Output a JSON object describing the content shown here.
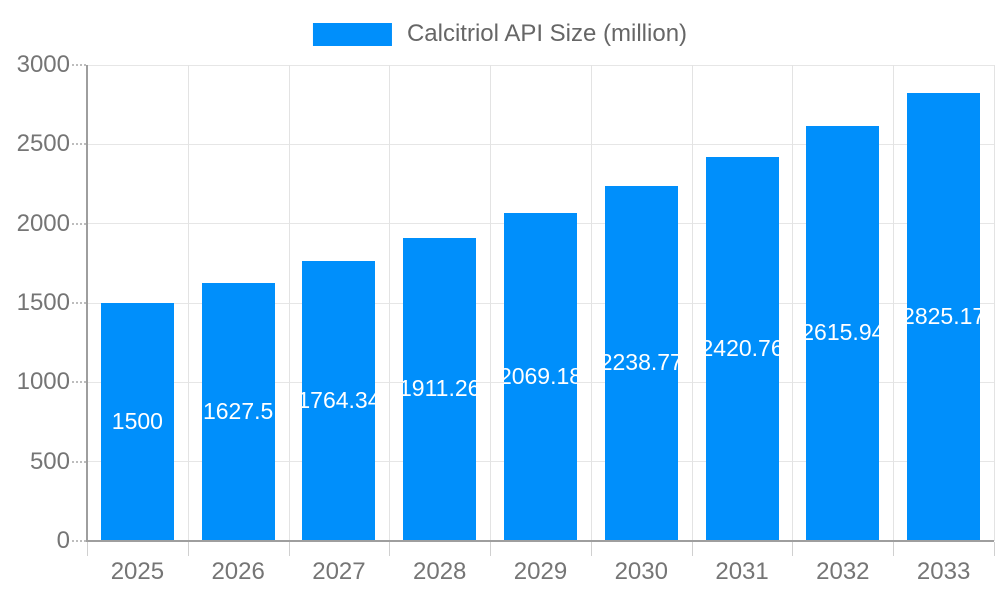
{
  "legend": {
    "label": "Calcitriol API Size (million)",
    "swatch_color": "#008FFB"
  },
  "chart_data": {
    "type": "bar",
    "title": "Calcitriol API Size (million)",
    "categories": [
      "2025",
      "2026",
      "2027",
      "2028",
      "2029",
      "2030",
      "2031",
      "2032",
      "2033"
    ],
    "series": [
      {
        "name": "Calcitriol API Size (million)",
        "color": "#008FFB",
        "values": [
          1500,
          1627.5,
          1764.34,
          1911.26,
          2069.18,
          2238.77,
          2420.76,
          2615.94,
          2825.17
        ]
      }
    ],
    "value_labels": [
      "1500",
      "1627.5",
      "1764.34",
      "1911.26",
      "2069.18",
      "2238.77",
      "2420.76",
      "2615.94",
      "2825.17"
    ],
    "xlabel": "",
    "ylabel": "",
    "ylim": [
      0,
      3000
    ],
    "y_ticks": [
      0,
      500,
      1000,
      1500,
      2000,
      2500,
      3000
    ],
    "grid": true,
    "legend_position": "top"
  },
  "colors": {
    "bar": "#008FFB",
    "axis_line": "#9e9e9e",
    "h_gridline": "#e6e6e6",
    "v_gridline": "#e3e3e3",
    "tick_label": "#757575",
    "legend_text": "#666666",
    "value_label": "#ffffff",
    "background": "#ffffff"
  }
}
